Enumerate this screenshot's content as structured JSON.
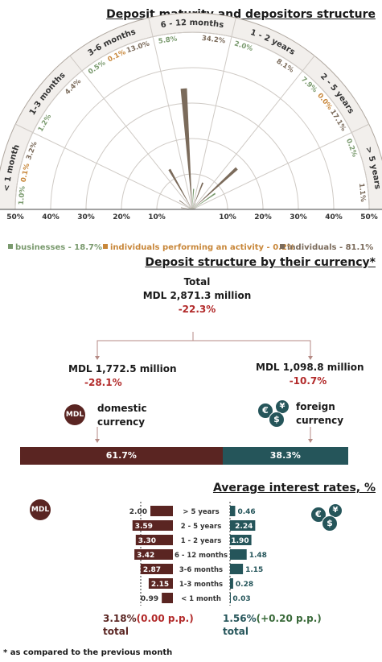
{
  "chart_data": [
    {
      "type": "polar-bar",
      "title": "Deposit maturity and depositors structure",
      "categories": [
        "< 1 month",
        "1-3 months",
        "3-6 months",
        "6 - 12 months",
        "1 - 2 years",
        "2 - 5 years",
        "> 5 years"
      ],
      "series": [
        {
          "name": "businesses - 18.7%",
          "color": "#7a9a6e",
          "values": [
            1.0,
            1.2,
            0.5,
            5.8,
            2.0,
            7.9,
            0.2
          ]
        },
        {
          "name": "individuals performing an activity - 0.2%",
          "color": "#c8873a",
          "values": [
            0.1,
            null,
            0.1,
            null,
            null,
            0.0,
            null
          ]
        },
        {
          "name": "individuals - 81.1%",
          "color": "#7b6b5b",
          "values": [
            3.2,
            4.4,
            13.0,
            34.2,
            8.1,
            17.1,
            1.1
          ]
        }
      ],
      "axis_ticks": [
        "50%",
        "40%",
        "30%",
        "20%",
        "10%",
        "10%",
        "20%",
        "30%",
        "40%",
        "50%"
      ],
      "rmax": 50
    },
    {
      "type": "bar",
      "title": "Deposit structure by their currency*",
      "categories": [
        "domestic currency",
        "foreign currency"
      ],
      "values": [
        61.7,
        38.3
      ],
      "labels": [
        "61.7%",
        "38.3%"
      ],
      "colors": [
        "#5a2522",
        "#25555a"
      ]
    },
    {
      "type": "bar",
      "title": "Average interest rates, %",
      "categories": [
        "> 5 years",
        "2 - 5 years",
        "1 - 2 years",
        "6 - 12 months",
        "3-6 months",
        "1-3 months",
        "< 1 month"
      ],
      "series": [
        {
          "name": "MDL",
          "color": "#5a2522",
          "values": [
            2.0,
            3.59,
            3.3,
            3.42,
            2.87,
            2.15,
            0.99
          ],
          "labels": [
            "2.00",
            "3.59",
            "3.30",
            "3.42",
            "2.87",
            "2.15",
            "0.99"
          ]
        },
        {
          "name": "foreign",
          "color": "#25555a",
          "values": [
            0.46,
            2.24,
            1.9,
            1.48,
            1.15,
            0.28,
            0.03
          ],
          "labels": [
            "0.46",
            "2.24",
            "1.90",
            "1.48",
            "1.15",
            "0.28",
            "0.03"
          ]
        }
      ]
    }
  ],
  "currency": {
    "total_label": "Total",
    "total_value": "MDL 2,871.3 million",
    "total_change": "-22.3%",
    "domestic_value": "MDL 1,772.5 million",
    "domestic_change": "-28.1%",
    "domestic_label_1": "domestic",
    "domestic_label_2": "currency",
    "foreign_value": "MDL 1,098.8 million",
    "foreign_change": "-10.7%",
    "foreign_label_1": "foreign",
    "foreign_label_2": "currency",
    "mdl_badge": "MDL"
  },
  "rates": {
    "mdl_badge": "MDL",
    "mdl_total": "3.18%",
    "mdl_change": "(0.00 p.p.)",
    "fx_total": "1.56%",
    "fx_change": "(+0.20 p.p.)",
    "total_word": "total"
  },
  "coins": [
    "€",
    "¥",
    "$"
  ],
  "colors": {
    "mdl": "#5a2522",
    "fx": "#25555a",
    "accent": "#b22a2a",
    "green": "#3a6a3a"
  },
  "footnote": "* as compared to the previous month"
}
